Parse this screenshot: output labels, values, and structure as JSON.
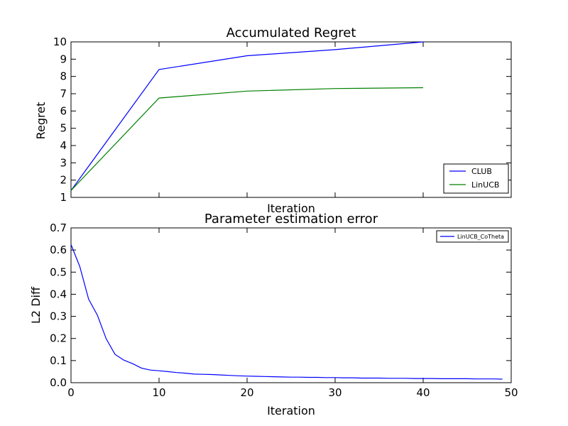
{
  "chart_data": [
    {
      "type": "line",
      "title": "Accumulated Regret",
      "xlabel": "Iteration",
      "ylabel": "Regret",
      "xlim": [
        0,
        50
      ],
      "ylim": [
        1,
        10
      ],
      "yticks": [
        "1",
        "2",
        "3",
        "4",
        "5",
        "6",
        "7",
        "8",
        "9",
        "10"
      ],
      "xticks_shown": false,
      "grid": false,
      "legend_position": "lower-right",
      "x": [
        0,
        10,
        20,
        30,
        40
      ],
      "series": [
        {
          "name": "CLUB",
          "color": "#0000ff",
          "values": [
            1.4,
            8.4,
            9.2,
            9.55,
            10.0
          ]
        },
        {
          "name": "LinUCB",
          "color": "#008000",
          "values": [
            1.4,
            6.75,
            7.15,
            7.3,
            7.35
          ]
        }
      ]
    },
    {
      "type": "line",
      "title": "Parameter estimation error",
      "xlabel": "Iteration",
      "ylabel": "L2 Diff",
      "xlim": [
        0,
        50
      ],
      "ylim": [
        0,
        0.7
      ],
      "xticks": [
        "0",
        "10",
        "20",
        "30",
        "40",
        "50"
      ],
      "yticks": [
        "0.0",
        "0.1",
        "0.2",
        "0.3",
        "0.4",
        "0.5",
        "0.6",
        "0.7"
      ],
      "grid": false,
      "legend_position": "upper-right",
      "x": [
        0,
        1,
        2,
        3,
        4,
        5,
        6,
        7,
        8,
        9,
        10,
        11,
        12,
        13,
        14,
        15,
        16,
        17,
        18,
        19,
        20,
        21,
        22,
        23,
        24,
        25,
        26,
        27,
        28,
        29,
        30,
        31,
        32,
        33,
        34,
        35,
        36,
        37,
        38,
        39,
        40,
        41,
        42,
        43,
        44,
        45,
        46,
        47,
        48,
        49
      ],
      "series": [
        {
          "name": "LinUCB_CoTheta",
          "color": "#0000ff",
          "values": [
            0.625,
            0.525,
            0.378,
            0.305,
            0.198,
            0.128,
            0.102,
            0.086,
            0.066,
            0.057,
            0.054,
            0.05,
            0.046,
            0.043,
            0.039,
            0.038,
            0.037,
            0.035,
            0.033,
            0.031,
            0.03,
            0.029,
            0.028,
            0.027,
            0.026,
            0.025,
            0.025,
            0.024,
            0.024,
            0.023,
            0.023,
            0.022,
            0.022,
            0.021,
            0.021,
            0.021,
            0.02,
            0.02,
            0.02,
            0.019,
            0.019,
            0.019,
            0.018,
            0.018,
            0.018,
            0.018,
            0.017,
            0.017,
            0.017,
            0.016
          ]
        }
      ]
    }
  ]
}
